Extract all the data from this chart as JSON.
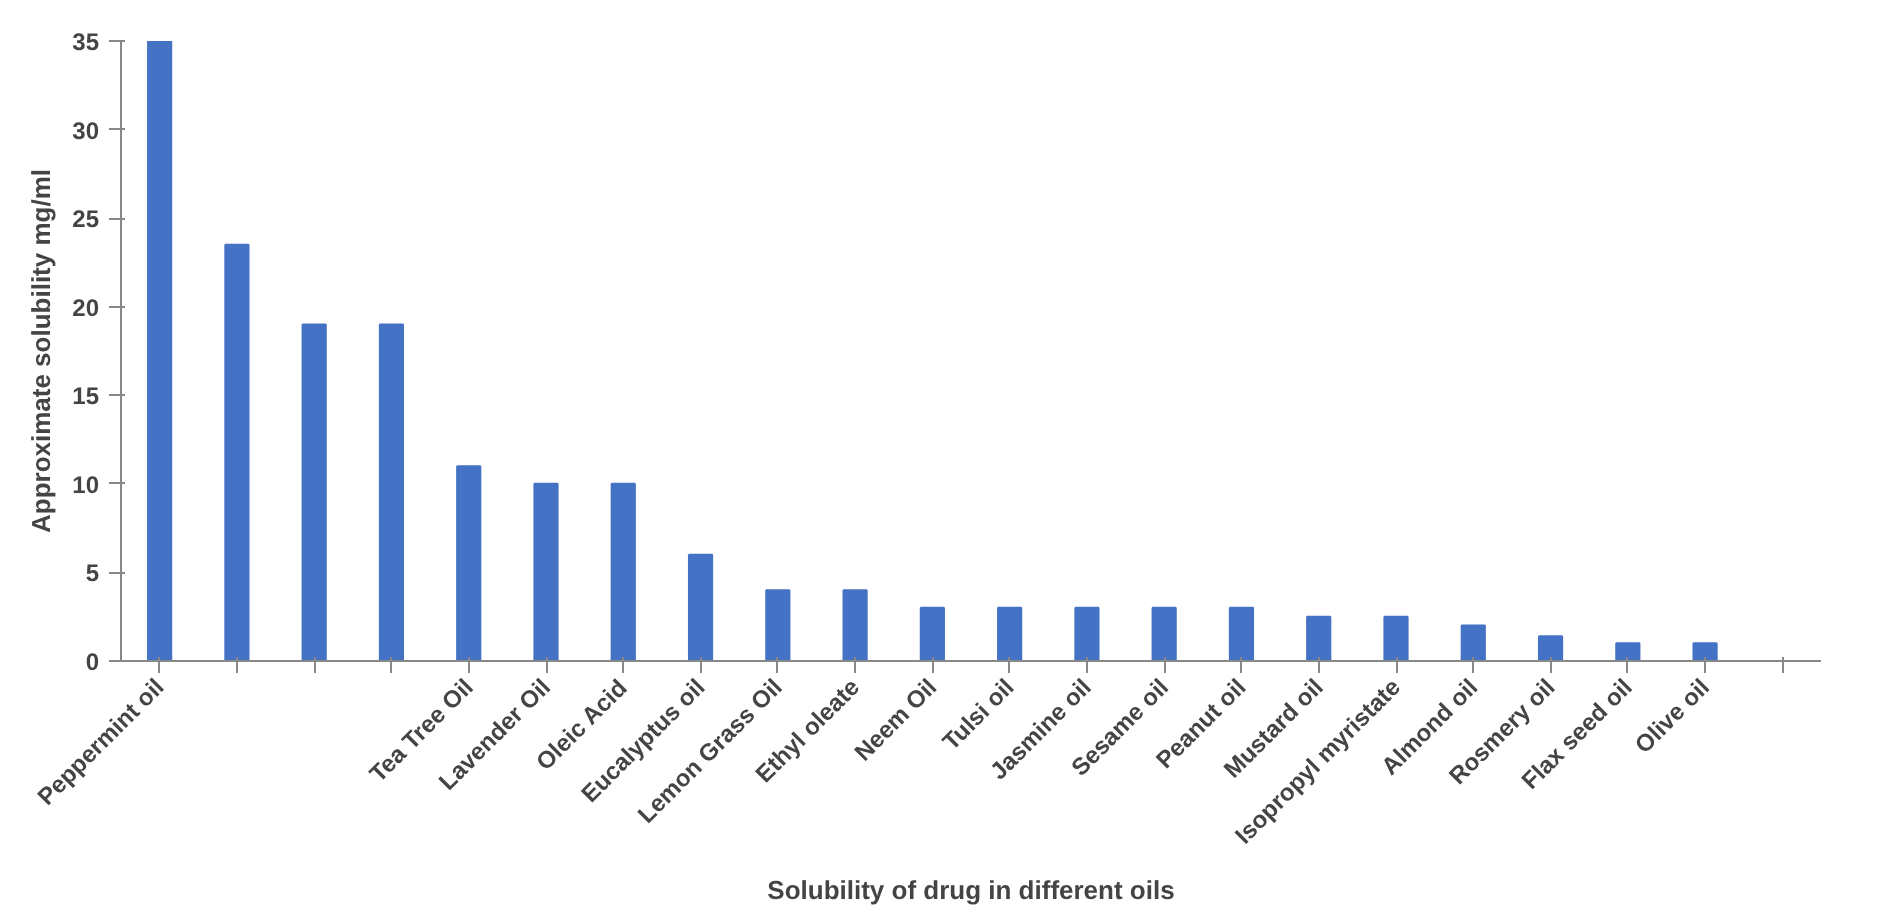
{
  "chart_data": {
    "type": "bar",
    "xlabel": "Solubility of drug in different oils",
    "ylabel": "Approximate solubility mg/ml",
    "categories": [
      "Peppermint oil",
      null,
      null,
      null,
      "Tea Tree Oil",
      "Lavender Oil",
      "Oleic Acid",
      "Eucalyptus oil",
      "Lemon Grass Oil",
      "Ethyl oleate",
      "Neem Oil",
      "Tulsi oil",
      "Jasmine oil",
      "Sesame oil",
      "Peanut oil",
      "Mustard oil",
      "Isopropyl myristate",
      "Almond oil",
      "Rosmery oil",
      "Flax seed oil",
      "Olive oil",
      null
    ],
    "values": [
      35,
      23.5,
      19,
      19,
      11,
      10,
      10,
      6,
      4,
      4,
      3,
      3,
      3,
      3,
      3,
      2.5,
      2.5,
      2,
      1.4,
      1,
      1,
      null
    ],
    "color": "#4472c4",
    "ylim": [
      0,
      35
    ],
    "yticks": [
      0,
      5,
      10,
      15,
      20,
      25,
      30,
      35
    ],
    "grid": false
  }
}
